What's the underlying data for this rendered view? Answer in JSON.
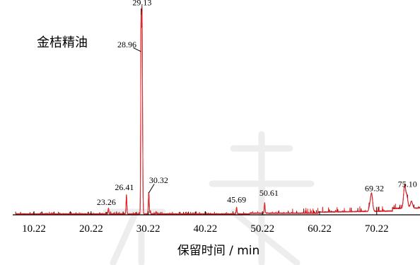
{
  "chart_data": {
    "type": "line",
    "title": "金桔精油",
    "xlabel": "保留时间 / min",
    "ylabel": "",
    "xlim": [
      6.5,
      77.8
    ],
    "ylim": [
      0,
      100
    ],
    "grid": false,
    "legend": "none",
    "colors": {
      "trace_back": "#7a0c0c",
      "trace_front": "#e8262c",
      "axis": "#000000"
    },
    "x_ticks": [
      10.22,
      20.22,
      30.22,
      40.22,
      50.22,
      60.22,
      70.22
    ],
    "x_tick_labels": [
      "10.22",
      "20.22",
      "30.22",
      "40.22",
      "50.22",
      "60.22",
      "70.22"
    ],
    "peaks": [
      {
        "x": 23.26,
        "label": "23.26",
        "y": 2.7
      },
      {
        "x": 26.41,
        "label": "26.41",
        "y": 8.8
      },
      {
        "x": 28.96,
        "label": "28.96",
        "y": 76
      },
      {
        "x": 29.13,
        "label": "29.13",
        "y": 95.5
      },
      {
        "x": 30.32,
        "label": "30.32",
        "y": 10.2
      },
      {
        "x": 45.69,
        "label": "45.69",
        "y": 3.1
      },
      {
        "x": 50.61,
        "label": "50.61",
        "y": 4.9
      },
      {
        "x": 69.32,
        "label": "69.32",
        "y": 8.4
      },
      {
        "x": 75.1,
        "label": "75.10",
        "y": 10.4
      }
    ]
  }
}
